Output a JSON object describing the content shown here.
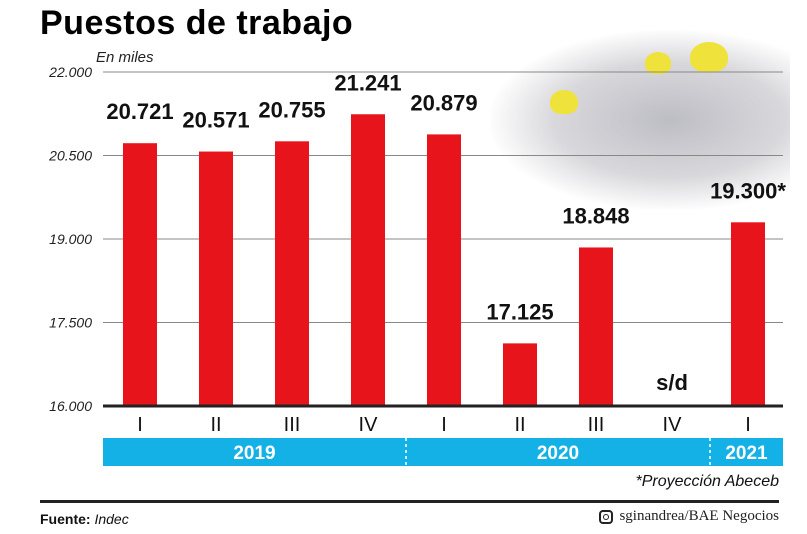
{
  "title": "Puestos de trabajo",
  "chart_data": {
    "type": "bar",
    "title": "Puestos de trabajo",
    "ylabel": "En miles",
    "ylim": [
      16000,
      22000
    ],
    "yticks": [
      16000,
      17500,
      19000,
      20500,
      22000
    ],
    "ytick_labels": [
      "16.000",
      "17.500",
      "19.000",
      "20.500",
      "22.000"
    ],
    "categories": [
      "I",
      "II",
      "III",
      "IV",
      "I",
      "II",
      "III",
      "IV",
      "I"
    ],
    "years": [
      {
        "label": "2019",
        "quarters": 4
      },
      {
        "label": "2020",
        "quarters": 4
      },
      {
        "label": "2021",
        "quarters": 1
      }
    ],
    "values": [
      20721,
      20571,
      20755,
      21241,
      20879,
      17125,
      18848,
      null,
      19300
    ],
    "value_labels": [
      "20.721",
      "20.571",
      "20.755",
      "21.241",
      "20.879",
      "17.125",
      "18.848",
      "s/d",
      "19.300*"
    ],
    "bar_color": "#e8141c",
    "band_color": "#14b1e7",
    "grid": true
  },
  "note": "*Proyección Abeceb",
  "source": {
    "label": "Fuente:",
    "value": "Indec"
  },
  "credit": "sginandrea/BAE Negocios"
}
